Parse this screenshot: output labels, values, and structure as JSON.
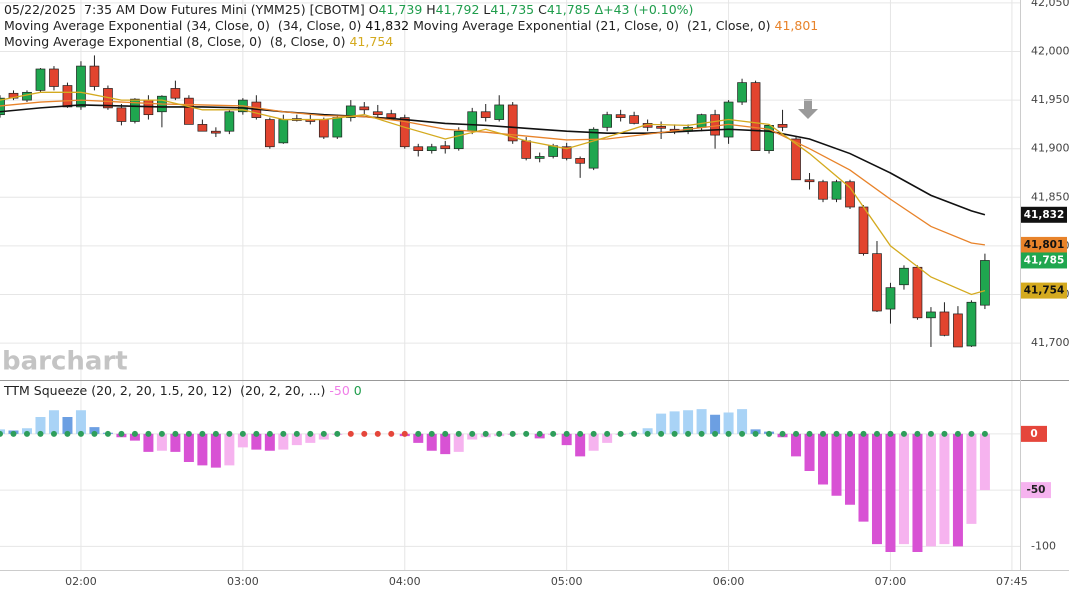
{
  "chart_data": [
    {
      "type": "candlestick",
      "header": {
        "date": "05/22/2025",
        "time": "7:35 AM",
        "symbol": "Dow Futures Mini (YMM25) [CBOTM]",
        "quote": [
          {
            "key": "O",
            "value": "41,739"
          },
          {
            "key": "H",
            "value": "41,792"
          },
          {
            "key": "L",
            "value": "41,735"
          },
          {
            "key": "C",
            "value": "41,785"
          }
        ],
        "change": "Δ+43 (+0.10%)"
      },
      "watermark": "barchart",
      "close_label": "41,785",
      "up_color": "#1fa64f",
      "down_color": "#e2442f",
      "x": [
        "01:30",
        "01:35",
        "01:40",
        "01:45",
        "01:50",
        "01:55",
        "02:00",
        "02:05",
        "02:10",
        "02:15",
        "02:20",
        "02:25",
        "02:30",
        "02:35",
        "02:40",
        "02:45",
        "02:50",
        "02:55",
        "03:00",
        "03:05",
        "03:10",
        "03:15",
        "03:20",
        "03:25",
        "03:30",
        "03:35",
        "03:40",
        "03:45",
        "03:50",
        "03:55",
        "04:00",
        "04:05",
        "04:10",
        "04:15",
        "04:20",
        "04:25",
        "04:30",
        "04:35",
        "04:40",
        "04:45",
        "04:50",
        "04:55",
        "05:00",
        "05:05",
        "05:10",
        "05:15",
        "05:20",
        "05:25",
        "05:30",
        "05:35",
        "05:40",
        "05:45",
        "05:50",
        "05:55",
        "06:00",
        "06:05",
        "06:10",
        "06:15",
        "06:20",
        "06:25",
        "06:30",
        "06:35",
        "06:40",
        "06:45",
        "06:50",
        "06:55",
        "07:00",
        "07:05",
        "07:10",
        "07:15",
        "07:20",
        "07:25",
        "07:30",
        "07:35"
      ],
      "open": [
        41935,
        41957,
        41950,
        41960,
        41982,
        41965,
        41943,
        41985,
        41962,
        41942,
        41928,
        41950,
        41938,
        41962,
        41952,
        41925,
        41918,
        41918,
        41938,
        41948,
        41930,
        41906,
        41931,
        41930,
        41930,
        41912,
        41932,
        41943,
        41938,
        41936,
        41932,
        41902,
        41898,
        41903,
        41900,
        41918,
        41938,
        41930,
        41945,
        41908,
        41890,
        41892,
        41902,
        41890,
        41880,
        41922,
        41935,
        41934,
        41926,
        41923,
        41920,
        41918,
        41922,
        41935,
        41912,
        41948,
        41968,
        41898,
        41925,
        41910,
        41868,
        41866,
        41848,
        41866,
        41840,
        41792,
        41735,
        41760,
        41778,
        41726,
        41732,
        41730,
        41697,
        41739
      ],
      "high": [
        41955,
        41960,
        41960,
        41983,
        41985,
        41968,
        41990,
        41996,
        41965,
        41946,
        41952,
        41955,
        41955,
        41970,
        41955,
        41930,
        41922,
        41940,
        41952,
        41955,
        41932,
        41935,
        41935,
        41935,
        41932,
        41935,
        41950,
        41948,
        41945,
        41940,
        41935,
        41905,
        41905,
        41908,
        41922,
        41942,
        41946,
        41955,
        41948,
        41912,
        41896,
        41905,
        41906,
        41892,
        41922,
        41938,
        41940,
        41938,
        41930,
        41928,
        41925,
        41925,
        41936,
        41940,
        41950,
        41972,
        41970,
        41925,
        41940,
        41912,
        41875,
        41868,
        41868,
        41868,
        41842,
        41805,
        41762,
        41780,
        41780,
        41737,
        41742,
        41738,
        41744,
        41792
      ],
      "low": [
        41932,
        41950,
        41948,
        41958,
        41960,
        41942,
        41940,
        41960,
        41940,
        41924,
        41926,
        41930,
        41922,
        41950,
        41925,
        41918,
        41912,
        41915,
        41935,
        41930,
        41900,
        41905,
        41928,
        41925,
        41910,
        41910,
        41928,
        41935,
        41932,
        41930,
        41900,
        41892,
        41895,
        41895,
        41898,
        41915,
        41928,
        41928,
        41905,
        41888,
        41886,
        41890,
        41888,
        41870,
        41878,
        41918,
        41928,
        41925,
        41918,
        41910,
        41915,
        41915,
        41918,
        41900,
        41905,
        41945,
        41900,
        41895,
        41918,
        41868,
        41858,
        41845,
        41845,
        41838,
        41790,
        41732,
        41720,
        41755,
        41724,
        41696,
        41707,
        41696,
        41696,
        41735
      ],
      "close": [
        41952,
        41952,
        41958,
        41982,
        41964,
        41943,
        41985,
        41964,
        41942,
        41928,
        41951,
        41935,
        41954,
        41952,
        41925,
        41918,
        41916,
        41938,
        41950,
        41932,
        41902,
        41930,
        41929,
        41928,
        41912,
        41932,
        41944,
        41940,
        41935,
        41932,
        41902,
        41898,
        41902,
        41900,
        41918,
        41938,
        41932,
        41945,
        41908,
        41890,
        41892,
        41903,
        41890,
        41885,
        41920,
        41935,
        41932,
        41926,
        41922,
        41921,
        41918,
        41922,
        41935,
        41914,
        41948,
        41968,
        41898,
        41924,
        41922,
        41868,
        41866,
        41848,
        41866,
        41840,
        41792,
        41733,
        41757,
        41777,
        41726,
        41732,
        41708,
        41696,
        41742,
        41785
      ],
      "series": [
        {
          "name": "Moving Average Exponential (34, Close, 0)",
          "params": "(34, Close, 0)",
          "color": "#111111",
          "badge_text": "#ffffff",
          "last_label": "41,832",
          "x": [
            "01:30",
            "01:45",
            "02:00",
            "02:15",
            "02:30",
            "02:45",
            "03:00",
            "03:15",
            "03:30",
            "03:45",
            "04:00",
            "04:15",
            "04:30",
            "04:45",
            "05:00",
            "05:15",
            "05:30",
            "05:45",
            "06:00",
            "06:15",
            "06:30",
            "06:45",
            "07:00",
            "07:15",
            "07:30",
            "07:35"
          ],
          "values": [
            41938,
            41942,
            41945,
            41944,
            41943,
            41943,
            41942,
            41938,
            41935,
            41933,
            41930,
            41926,
            41924,
            41921,
            41918,
            41916,
            41916,
            41918,
            41920,
            41918,
            41910,
            41895,
            41875,
            41852,
            41836,
            41832
          ]
        },
        {
          "name": "Moving Average Exponential (21, Close, 0)",
          "params": "(21, Close, 0)",
          "color": "#e8832a",
          "badge_text": "#111111",
          "last_label": "41,801",
          "x": [
            "01:30",
            "01:45",
            "02:00",
            "02:15",
            "02:30",
            "02:45",
            "03:00",
            "03:15",
            "03:30",
            "03:45",
            "04:00",
            "04:15",
            "04:30",
            "04:45",
            "05:00",
            "05:15",
            "05:30",
            "05:45",
            "06:00",
            "06:15",
            "06:30",
            "06:45",
            "07:00",
            "07:15",
            "07:30",
            "07:35"
          ],
          "values": [
            41944,
            41948,
            41950,
            41948,
            41946,
            41945,
            41944,
            41938,
            41934,
            41933,
            41928,
            41920,
            41917,
            41913,
            41909,
            41910,
            41915,
            41920,
            41925,
            41920,
            41900,
            41878,
            41848,
            41820,
            41803,
            41801
          ]
        },
        {
          "name": "Moving Average Exponential (8, Close, 0)",
          "params": "(8, Close, 0)",
          "color": "#d4aa1f",
          "badge_text": "#111111",
          "last_label": "41,754",
          "x": [
            "01:30",
            "01:45",
            "02:00",
            "02:15",
            "02:30",
            "02:45",
            "03:00",
            "03:15",
            "03:30",
            "03:45",
            "04:00",
            "04:15",
            "04:30",
            "04:45",
            "05:00",
            "05:15",
            "05:30",
            "05:45",
            "06:00",
            "06:15",
            "06:30",
            "06:45",
            "07:00",
            "07:15",
            "07:30",
            "07:35"
          ],
          "values": [
            41950,
            41958,
            41958,
            41950,
            41950,
            41940,
            41940,
            41930,
            41930,
            41935,
            41922,
            41910,
            41920,
            41908,
            41900,
            41912,
            41925,
            41924,
            41930,
            41925,
            41895,
            41860,
            41800,
            41768,
            41750,
            41754
          ]
        }
      ],
      "xlim": [
        "01:30",
        "07:48"
      ],
      "xticks": [
        "02:00",
        "03:00",
        "04:00",
        "05:00",
        "06:00",
        "07:00",
        "07:45"
      ],
      "ylim": [
        41662,
        42053
      ],
      "yticks": [
        {
          "value": 41700,
          "label": "41,700"
        },
        {
          "value": 41750,
          "label": "41,750"
        },
        {
          "value": 41800,
          "label": "41,800"
        },
        {
          "value": 41850,
          "label": "41,850"
        },
        {
          "value": 41900,
          "label": "41,900"
        },
        {
          "value": 41950,
          "label": "41,950"
        },
        {
          "value": 42000,
          "label": "42,000"
        },
        {
          "value": 42050,
          "label": "42,050"
        }
      ],
      "grid": true
    },
    {
      "type": "histogram",
      "title": "TTM Squeeze (20, 2, 20, 1.5, 20, 12)",
      "params": "(20, 2, 20, ...)",
      "dots_value": 0,
      "colors": {
        "pos_up": "#a9d3f6",
        "pos_down": "#6c9fe2",
        "neg_down": "#d852d4",
        "neg_up": "#f6b3ef"
      },
      "x": [
        "01:30",
        "01:35",
        "01:40",
        "01:45",
        "01:50",
        "01:55",
        "02:00",
        "02:05",
        "02:10",
        "02:15",
        "02:20",
        "02:25",
        "02:30",
        "02:35",
        "02:40",
        "02:45",
        "02:50",
        "02:55",
        "03:00",
        "03:05",
        "03:10",
        "03:15",
        "03:20",
        "03:25",
        "03:30",
        "03:35",
        "03:40",
        "03:45",
        "03:50",
        "03:55",
        "04:00",
        "04:05",
        "04:10",
        "04:15",
        "04:20",
        "04:25",
        "04:30",
        "04:35",
        "04:40",
        "04:45",
        "04:50",
        "04:55",
        "05:00",
        "05:05",
        "05:10",
        "05:15",
        "05:20",
        "05:25",
        "05:30",
        "05:35",
        "05:40",
        "05:45",
        "05:50",
        "05:55",
        "06:00",
        "06:05",
        "06:10",
        "06:15",
        "06:20",
        "06:25",
        "06:30",
        "06:35",
        "06:40",
        "06:45",
        "06:50",
        "06:55",
        "07:00",
        "07:05",
        "07:10",
        "07:15",
        "07:20",
        "07:25",
        "07:30",
        "07:35"
      ],
      "values": [
        4,
        3,
        5,
        15,
        21,
        15,
        21,
        6,
        1,
        -3,
        -6,
        -16,
        -15,
        -16,
        -25,
        -28,
        -30,
        -28,
        -12,
        -14,
        -15,
        -14,
        -10,
        -8,
        -5,
        -1,
        0,
        0,
        0,
        0,
        -2,
        -8,
        -15,
        -18,
        -16,
        -5,
        -3,
        -2,
        -1,
        0,
        -4,
        -1,
        -10,
        -20,
        -15,
        -8,
        -1,
        1,
        5,
        18,
        20,
        21,
        22,
        17,
        19,
        22,
        4,
        2,
        -3,
        -20,
        -33,
        -45,
        -55,
        -63,
        -78,
        -98,
        -105,
        -98,
        -105,
        -100,
        -98,
        -100,
        -80,
        -50
      ],
      "dot_colors": [
        "#2e9e5b",
        "#2e9e5b",
        "#2e9e5b",
        "#2e9e5b",
        "#2e9e5b",
        "#2e9e5b",
        "#2e9e5b",
        "#2e9e5b",
        "#2e9e5b",
        "#2e9e5b",
        "#2e9e5b",
        "#2e9e5b",
        "#2e9e5b",
        "#2e9e5b",
        "#2e9e5b",
        "#2e9e5b",
        "#2e9e5b",
        "#2e9e5b",
        "#2e9e5b",
        "#2e9e5b",
        "#2e9e5b",
        "#2e9e5b",
        "#2e9e5b",
        "#2e9e5b",
        "#2e9e5b",
        "#2e9e5b",
        "#e5463b",
        "#e5463b",
        "#e5463b",
        "#e5463b",
        "#e5463b",
        "#2e9e5b",
        "#2e9e5b",
        "#2e9e5b",
        "#2e9e5b",
        "#2e9e5b",
        "#2e9e5b",
        "#2e9e5b",
        "#2e9e5b",
        "#2e9e5b",
        "#2e9e5b",
        "#2e9e5b",
        "#2e9e5b",
        "#2e9e5b",
        "#2e9e5b",
        "#2e9e5b",
        "#2e9e5b",
        "#2e9e5b",
        "#2e9e5b",
        "#2e9e5b",
        "#2e9e5b",
        "#2e9e5b",
        "#2e9e5b",
        "#2e9e5b",
        "#2e9e5b",
        "#2e9e5b",
        "#2e9e5b",
        "#2e9e5b",
        "#2e9e5b",
        "#2e9e5b",
        "#2e9e5b",
        "#2e9e5b",
        "#2e9e5b",
        "#2e9e5b",
        "#2e9e5b",
        "#2e9e5b",
        "#2e9e5b",
        "#2e9e5b",
        "#2e9e5b",
        "#2e9e5b",
        "#2e9e5b",
        "#2e9e5b",
        "#2e9e5b",
        "#2e9e5b"
      ],
      "ylim": [
        -121,
        47
      ],
      "yticks": [
        0,
        -50,
        -100
      ],
      "grid": true
    }
  ]
}
